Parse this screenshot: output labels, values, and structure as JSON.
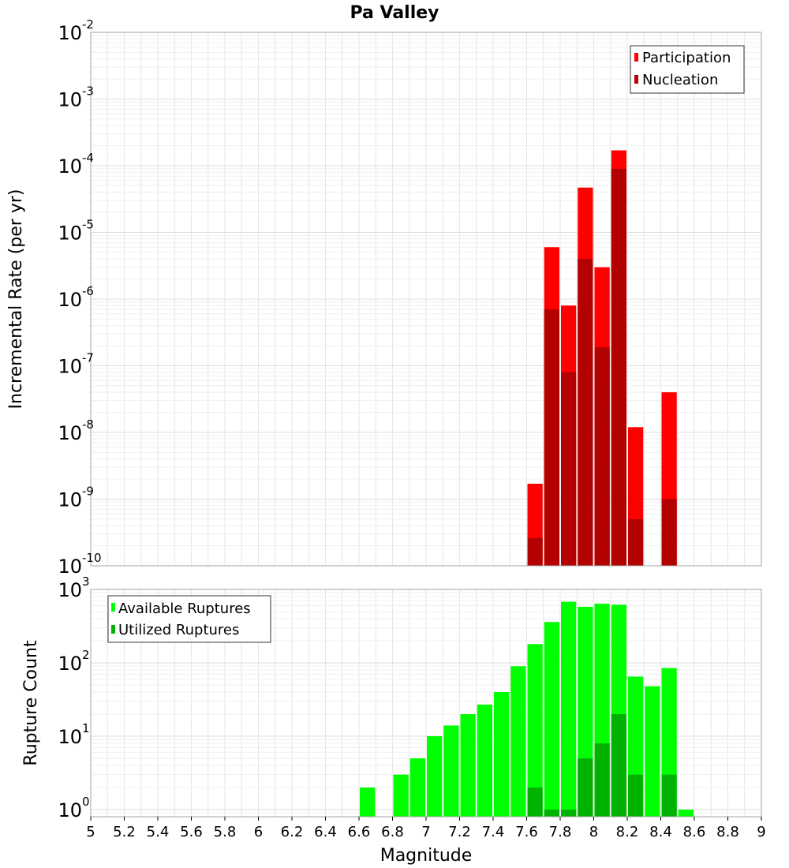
{
  "title": "Pa Valley",
  "xlabel": "Magnitude",
  "colors": {
    "participation": "#ff0000",
    "nucleation": "#b30000",
    "available": "#00ff00",
    "utilized": "#00b300",
    "grid": "#e6e6e6",
    "frame": "#a0a0a0"
  },
  "chart_data": [
    {
      "type": "bar",
      "title": "Pa Valley",
      "ylabel": "Incremental Rate (per yr)",
      "yscale": "log",
      "ylim": [
        1e-10,
        0.01
      ],
      "xlim": [
        5,
        9
      ],
      "grid": true,
      "legend_position": "top-right",
      "yticks": [
        {
          "base": "10",
          "exp": "-10"
        },
        {
          "base": "10",
          "exp": "-9"
        },
        {
          "base": "10",
          "exp": "-8"
        },
        {
          "base": "10",
          "exp": "-7"
        },
        {
          "base": "10",
          "exp": "-6"
        },
        {
          "base": "10",
          "exp": "-5"
        },
        {
          "base": "10",
          "exp": "-4"
        },
        {
          "base": "10",
          "exp": "-3"
        },
        {
          "base": "10",
          "exp": "-2"
        }
      ],
      "x": [
        7.65,
        7.75,
        7.85,
        7.95,
        8.05,
        8.15,
        8.25,
        8.35,
        8.45
      ],
      "series": [
        {
          "name": "Participation",
          "values": [
            1.7e-09,
            6e-06,
            8e-07,
            4.7e-05,
            3e-06,
            0.00017,
            1.2e-08,
            null,
            4e-08
          ]
        },
        {
          "name": "Nucleation",
          "values": [
            2.6e-10,
            7e-07,
            8e-08,
            4e-06,
            1.9e-07,
            9e-05,
            5e-10,
            null,
            1e-09
          ]
        }
      ]
    },
    {
      "type": "bar",
      "ylabel": "Rupture Count",
      "yscale": "log",
      "ylim": [
        0.8,
        1000
      ],
      "xlim": [
        5,
        9
      ],
      "grid": true,
      "legend_position": "top-left",
      "yticks": [
        {
          "base": "10",
          "exp": "0"
        },
        {
          "base": "10",
          "exp": "1"
        },
        {
          "base": "10",
          "exp": "2"
        },
        {
          "base": "10",
          "exp": "3"
        }
      ],
      "xticks": [
        "5",
        "5.2",
        "5.4",
        "5.6",
        "5.8",
        "6",
        "6.2",
        "6.4",
        "6.6",
        "6.8",
        "7",
        "7.2",
        "7.4",
        "7.6",
        "7.8",
        "8",
        "8.2",
        "8.4",
        "8.6",
        "8.8",
        "9"
      ],
      "x": [
        6.65,
        6.75,
        6.85,
        6.95,
        7.05,
        7.15,
        7.25,
        7.35,
        7.45,
        7.55,
        7.65,
        7.75,
        7.85,
        7.95,
        8.05,
        8.15,
        8.25,
        8.35,
        8.45,
        8.55
      ],
      "series": [
        {
          "name": "Available Ruptures",
          "values": [
            2,
            null,
            3,
            5,
            10,
            14,
            20,
            27,
            40,
            90,
            180,
            360,
            680,
            580,
            640,
            620,
            65,
            48,
            85,
            1
          ]
        },
        {
          "name": "Utilized Ruptures",
          "values": [
            null,
            null,
            null,
            null,
            null,
            null,
            null,
            null,
            null,
            null,
            2,
            1,
            1,
            5,
            8,
            20,
            3,
            null,
            3,
            null
          ]
        }
      ]
    }
  ]
}
